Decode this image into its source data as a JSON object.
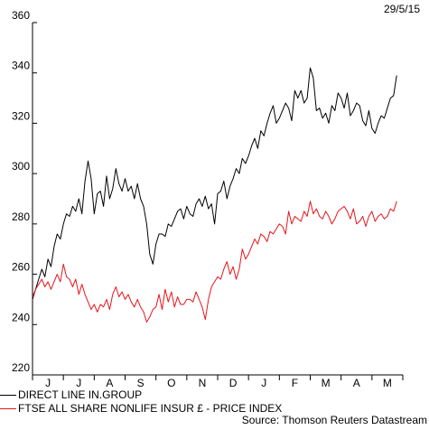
{
  "date_label": "29/5/15",
  "source": "Source: Thomson Reuters Datastream",
  "legend": [
    {
      "label": "DIRECT LINE IN.GROUP",
      "color": "#000000"
    },
    {
      "label": "FTSE ALL SHARE NONLIFE INSUR £ - PRICE INDEX",
      "color": "#e8141b"
    }
  ],
  "chart_data": {
    "type": "line",
    "title": "",
    "xlabel": "",
    "ylabel": "",
    "ylim": [
      220,
      360
    ],
    "yticks": [
      220,
      240,
      260,
      280,
      300,
      320,
      340,
      360
    ],
    "x_ticks": [
      "J",
      "J",
      "A",
      "S",
      "O",
      "N",
      "D",
      "J",
      "F",
      "M",
      "A",
      "M"
    ],
    "x_range_months": [
      0,
      12.0
    ],
    "grid": false,
    "legend_position": "bottom-left",
    "series": [
      {
        "name": "DIRECT LINE IN.GROUP",
        "color": "#000000",
        "x": [
          0,
          0.1,
          0.2,
          0.3,
          0.4,
          0.5,
          0.6,
          0.7,
          0.8,
          0.9,
          1.0,
          1.1,
          1.2,
          1.3,
          1.4,
          1.5,
          1.6,
          1.7,
          1.8,
          1.9,
          2.0,
          2.1,
          2.2,
          2.3,
          2.4,
          2.5,
          2.6,
          2.7,
          2.8,
          2.9,
          3.0,
          3.1,
          3.2,
          3.3,
          3.4,
          3.5,
          3.6,
          3.7,
          3.8,
          3.9,
          4.0,
          4.1,
          4.2,
          4.3,
          4.4,
          4.5,
          4.6,
          4.7,
          4.8,
          4.9,
          5.0,
          5.1,
          5.2,
          5.3,
          5.4,
          5.5,
          5.6,
          5.7,
          5.8,
          5.9,
          6.0,
          6.1,
          6.2,
          6.3,
          6.4,
          6.5,
          6.6,
          6.7,
          6.8,
          6.9,
          7.0,
          7.1,
          7.2,
          7.3,
          7.4,
          7.5,
          7.6,
          7.7,
          7.8,
          7.9,
          8.0,
          8.1,
          8.2,
          8.3,
          8.4,
          8.5,
          8.6,
          8.7,
          8.8,
          8.9,
          9.0,
          9.1,
          9.2,
          9.3,
          9.4,
          9.5,
          9.6,
          9.7,
          9.8,
          9.9,
          10.0,
          10.1,
          10.2,
          10.3,
          10.4,
          10.5,
          10.6,
          10.7,
          10.8,
          10.9,
          11.0,
          11.1,
          11.2,
          11.3,
          11.4,
          11.5,
          11.6,
          11.7,
          11.8
        ],
        "y": [
          250,
          254,
          258,
          262,
          259,
          266,
          263,
          271,
          276,
          274,
          280,
          284,
          283,
          287,
          285,
          290,
          284,
          297,
          305,
          298,
          284,
          292,
          293,
          287,
          299,
          290,
          294,
          302,
          296,
          293,
          298,
          293,
          295,
          290,
          296,
          290,
          287,
          280,
          268,
          264,
          272,
          276,
          276,
          275,
          280,
          279,
          282,
          285,
          286,
          282,
          287,
          284,
          283,
          288,
          290,
          287,
          291,
          286,
          288,
          280,
          292,
          293,
          297,
          290,
          295,
          298,
          302,
          300,
          306,
          304,
          307,
          311,
          314,
          310,
          317,
          315,
          320,
          324,
          327,
          320,
          322,
          325,
          328,
          326,
          321,
          333,
          330,
          333,
          328,
          330,
          342,
          338,
          325,
          326,
          322,
          324,
          320,
          327,
          325,
          332,
          330,
          326,
          332,
          323,
          325,
          328,
          327,
          321,
          319,
          325,
          318,
          316,
          320,
          323,
          322,
          326,
          330,
          331,
          339
        ]
      },
      {
        "name": "FTSE ALL SHARE NONLIFE INSUR £ - PRICE INDEX",
        "color": "#e8141b",
        "x": [
          0,
          0.1,
          0.2,
          0.3,
          0.4,
          0.5,
          0.6,
          0.7,
          0.8,
          0.9,
          1.0,
          1.1,
          1.2,
          1.3,
          1.4,
          1.5,
          1.6,
          1.7,
          1.8,
          1.9,
          2.0,
          2.1,
          2.2,
          2.3,
          2.4,
          2.5,
          2.6,
          2.7,
          2.8,
          2.9,
          3.0,
          3.1,
          3.2,
          3.3,
          3.4,
          3.5,
          3.6,
          3.7,
          3.8,
          3.9,
          4.0,
          4.1,
          4.2,
          4.3,
          4.4,
          4.5,
          4.6,
          4.7,
          4.8,
          4.9,
          5.0,
          5.1,
          5.2,
          5.3,
          5.4,
          5.5,
          5.6,
          5.7,
          5.8,
          5.9,
          6.0,
          6.1,
          6.2,
          6.3,
          6.4,
          6.5,
          6.6,
          6.7,
          6.8,
          6.9,
          7.0,
          7.1,
          7.2,
          7.3,
          7.4,
          7.5,
          7.6,
          7.7,
          7.8,
          7.9,
          8.0,
          8.1,
          8.2,
          8.3,
          8.4,
          8.5,
          8.6,
          8.7,
          8.8,
          8.9,
          9.0,
          9.1,
          9.2,
          9.3,
          9.4,
          9.5,
          9.6,
          9.7,
          9.8,
          9.9,
          10.0,
          10.1,
          10.2,
          10.3,
          10.4,
          10.5,
          10.6,
          10.7,
          10.8,
          10.9,
          11.0,
          11.1,
          11.2,
          11.3,
          11.4,
          11.5,
          11.6,
          11.7,
          11.8
        ],
        "y": [
          251,
          254,
          256,
          258,
          255,
          257,
          254,
          257,
          260,
          257,
          264,
          259,
          258,
          255,
          258,
          252,
          256,
          252,
          249,
          246,
          248,
          245,
          248,
          247,
          250,
          246,
          252,
          255,
          251,
          253,
          250,
          252,
          249,
          247,
          250,
          247,
          245,
          241,
          243,
          246,
          247,
          252,
          246,
          254,
          249,
          253,
          247,
          251,
          248,
          248,
          250,
          250,
          249,
          253,
          250,
          247,
          242,
          250,
          255,
          257,
          259,
          258,
          262,
          265,
          260,
          263,
          258,
          262,
          270,
          266,
          268,
          271,
          274,
          272,
          276,
          275,
          273,
          277,
          276,
          278,
          280,
          279,
          276,
          285,
          280,
          283,
          282,
          281,
          285,
          283,
          289,
          284,
          286,
          283,
          282,
          285,
          283,
          280,
          282,
          285,
          286,
          287,
          285,
          282,
          286,
          280,
          281,
          283,
          279,
          283,
          285,
          281,
          283,
          284,
          282,
          283,
          286,
          285,
          289
        ]
      }
    ]
  }
}
